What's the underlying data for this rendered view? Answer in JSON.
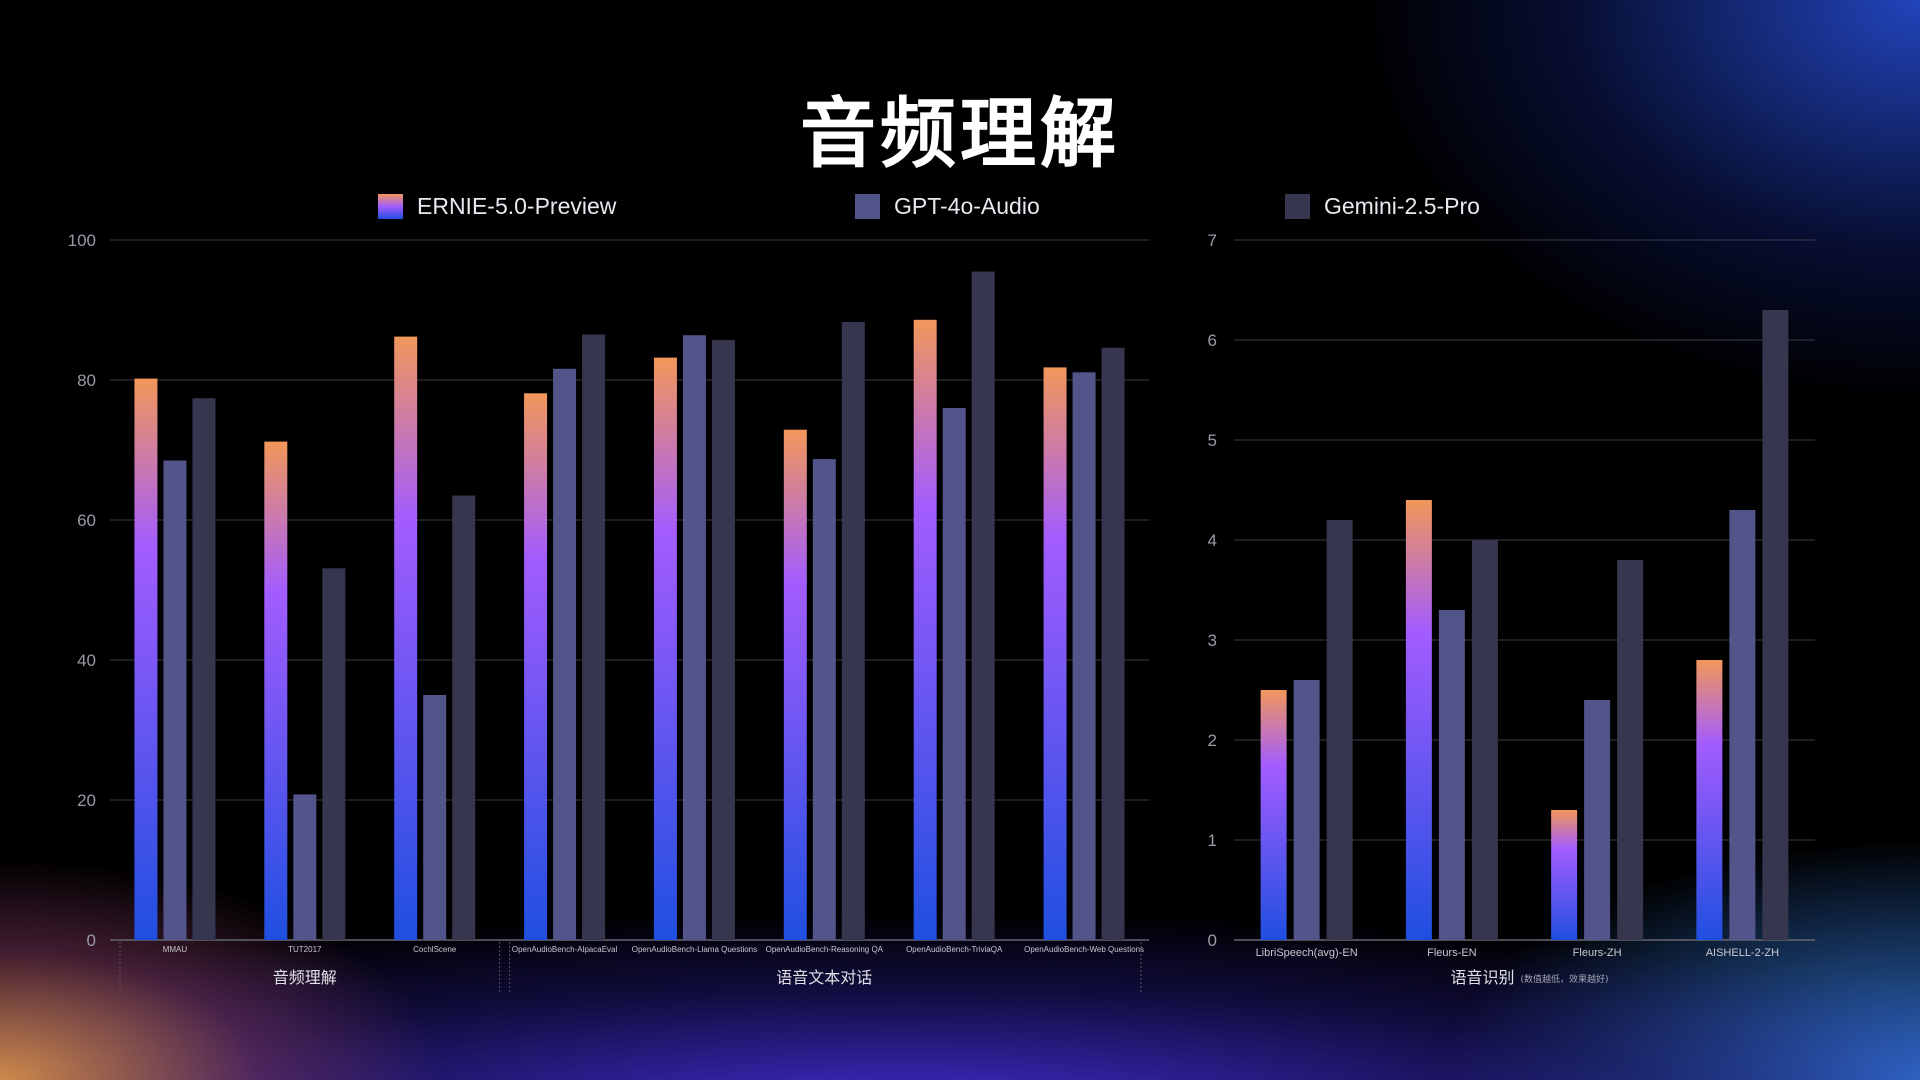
{
  "title": "音频理解",
  "colors": {
    "ernie_top": "#f2975a",
    "ernie_mid": "#a35cff",
    "ernie_bottom": "#1f4fe0",
    "gpt": "#53548a",
    "gemini": "#36364e",
    "grid": "#3a3a44"
  },
  "legend": [
    "ERNIE-5.0-Preview",
    "GPT-4o-Audio",
    "Gemini-2.5-Pro"
  ],
  "chart_data": [
    {
      "type": "bar",
      "ylim": [
        0,
        100
      ],
      "yticks": [
        0,
        20,
        40,
        60,
        80,
        100
      ],
      "grid": true,
      "legend_position": "top",
      "categories": [
        "MMAU",
        "TUT2017",
        "CochlScene",
        "OpenAudioBench-AlpacaEval",
        "OpenAudioBench-Llama Questions",
        "OpenAudioBench-Reasoning QA",
        "OpenAudioBench-TriviaQA",
        "OpenAudioBench-Web Questions"
      ],
      "groups": [
        {
          "label": "音频理解",
          "count": 3
        },
        {
          "label": "语音文本对话",
          "count": 5
        }
      ],
      "series": [
        {
          "name": "ERNIE-5.0-Preview",
          "values": [
            80.2,
            71.2,
            86.2,
            78.1,
            83.2,
            72.9,
            88.6,
            81.8
          ]
        },
        {
          "name": "GPT-4o-Audio",
          "values": [
            68.5,
            20.8,
            35.0,
            81.6,
            86.4,
            68.7,
            76.0,
            81.1
          ]
        },
        {
          "name": "Gemini-2.5-Pro",
          "values": [
            77.4,
            53.1,
            63.5,
            86.5,
            85.7,
            88.3,
            95.5,
            84.6
          ]
        }
      ]
    },
    {
      "type": "bar",
      "ylim": [
        0,
        7
      ],
      "yticks": [
        0,
        1,
        2,
        3,
        4,
        5,
        6,
        7
      ],
      "grid": true,
      "categories": [
        "LibriSpeech(avg)-EN",
        "Fleurs-EN",
        "Fleurs-ZH",
        "AISHELL-2-ZH"
      ],
      "groups": [
        {
          "label": "语音识别",
          "note": "(数值越低，效果越好)",
          "count": 4
        }
      ],
      "series": [
        {
          "name": "ERNIE-5.0-Preview",
          "values": [
            2.5,
            4.4,
            1.3,
            2.8
          ]
        },
        {
          "name": "GPT-4o-Audio",
          "values": [
            2.6,
            3.3,
            2.4,
            4.3
          ]
        },
        {
          "name": "Gemini-2.5-Pro",
          "values": [
            4.2,
            4.0,
            3.8,
            6.3
          ]
        }
      ]
    }
  ]
}
